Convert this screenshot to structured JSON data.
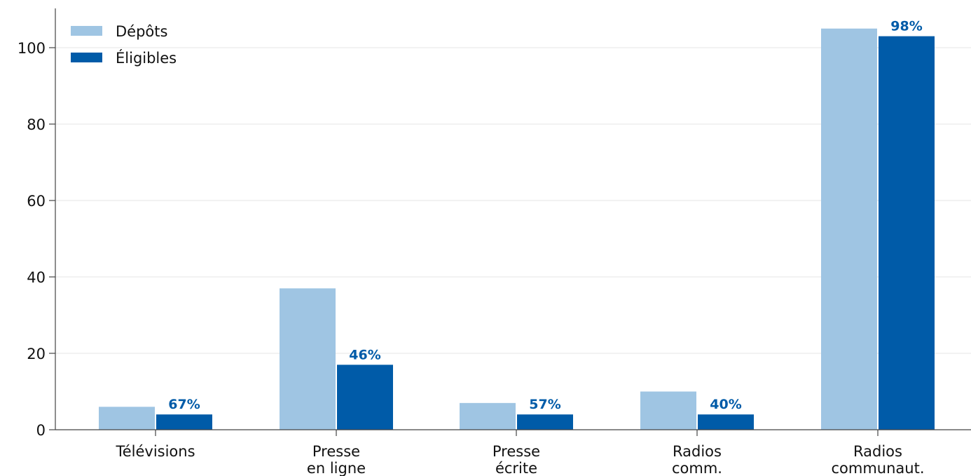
{
  "chart_data": {
    "type": "bar",
    "categories": [
      [
        "Télévisions"
      ],
      [
        "Presse",
        "en ligne"
      ],
      [
        "Presse",
        "écrite"
      ],
      [
        "Radios",
        "comm."
      ],
      [
        "Radios",
        "communaut."
      ]
    ],
    "series": [
      {
        "name": "Dépôts",
        "color": "#9fc5e3",
        "values": [
          6,
          37,
          7,
          10,
          105
        ]
      },
      {
        "name": "Éligibles",
        "color": "#005ba8",
        "values": [
          4,
          17,
          4,
          4,
          103
        ]
      }
    ],
    "data_labels": [
      "67%",
      "46%",
      "57%",
      "40%",
      "98%"
    ],
    "data_label_color": "#005ba8",
    "yticks": [
      "0",
      "20",
      "40",
      "60",
      "80",
      "100"
    ],
    "ylim": [
      0,
      110
    ],
    "grid": "horizontal",
    "legend_position": "top-left",
    "title": "",
    "xlabel": "",
    "ylabel": ""
  }
}
